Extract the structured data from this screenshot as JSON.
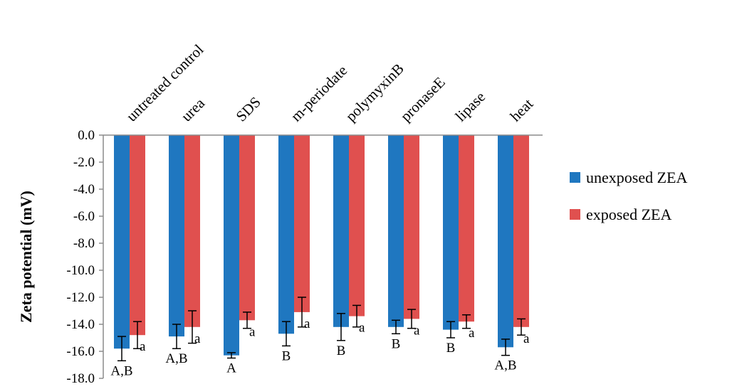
{
  "chart_data": {
    "type": "bar",
    "categories": [
      "untreated control",
      "urea",
      "SDS",
      "m-periodate",
      "polymyxinB",
      "pronaseE",
      "lipase",
      "heat"
    ],
    "series": [
      {
        "name": "unexposed ZEA",
        "color": "#1f77c0",
        "values": [
          -15.8,
          -14.9,
          -16.3,
          -14.7,
          -14.2,
          -14.2,
          -14.4,
          -15.7
        ],
        "errors": [
          0.9,
          0.9,
          0.2,
          0.9,
          1.0,
          0.5,
          0.6,
          0.6
        ],
        "significance": [
          "A,B",
          "A,B",
          "A",
          "B",
          "B",
          "B",
          "B",
          "A,B"
        ]
      },
      {
        "name": "exposed ZEA",
        "color": "#e0504f",
        "values": [
          -14.8,
          -14.2,
          -13.7,
          -13.1,
          -13.4,
          -13.6,
          -13.8,
          -14.2
        ],
        "errors": [
          1.0,
          1.2,
          0.6,
          1.1,
          0.8,
          0.7,
          0.5,
          0.6
        ],
        "significance": [
          "a",
          "a",
          "a",
          "a",
          "a",
          "a",
          "a",
          "a"
        ]
      }
    ],
    "ylabel": "Zeta potential (mV)",
    "ylim": [
      -18.0,
      0.0
    ],
    "yticks": [
      "0.0",
      "-2.0",
      "-4.0",
      "-6.0",
      "-8.0",
      "-10.0",
      "-12.0",
      "-14.0",
      "-16.0",
      "-18.0"
    ],
    "category_labels_position": "top, rotated",
    "legend_position": "right",
    "grid": false
  }
}
